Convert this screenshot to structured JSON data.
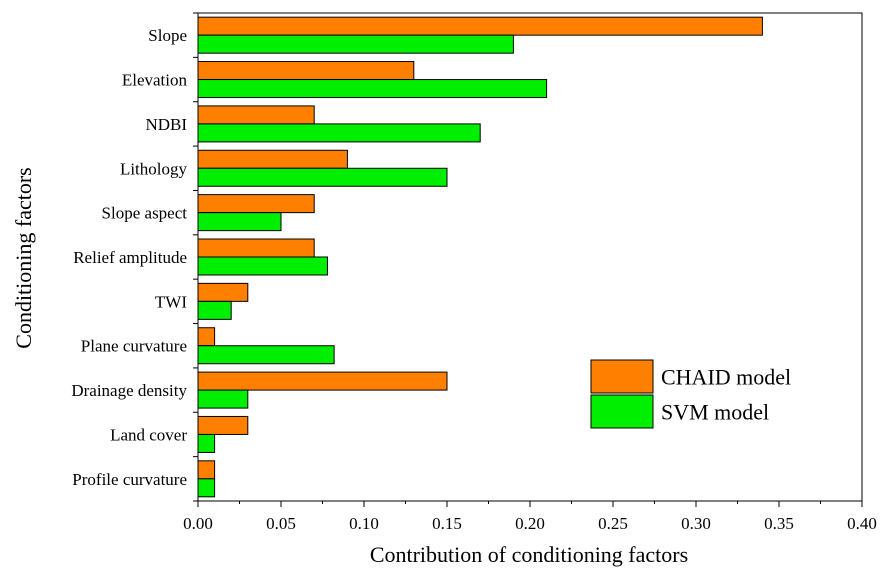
{
  "chart_data": {
    "type": "bar",
    "orientation": "horizontal",
    "categories": [
      "Slope",
      "Elevation",
      "NDBI",
      "Lithology",
      "Slope aspect",
      "Relief amplitude",
      "TWI",
      "Plane curvature",
      "Drainage density",
      "Land cover",
      "Profile curvature"
    ],
    "series": [
      {
        "name": "CHAID model",
        "color": "#ff8000",
        "values": [
          0.34,
          0.13,
          0.07,
          0.09,
          0.07,
          0.07,
          0.03,
          0.01,
          0.15,
          0.03,
          0.01
        ]
      },
      {
        "name": "SVM model",
        "color": "#00ee00",
        "values": [
          0.19,
          0.21,
          0.17,
          0.15,
          0.05,
          0.078,
          0.02,
          0.082,
          0.03,
          0.01,
          0.01
        ]
      }
    ],
    "xlabel": "Contribution of  conditioning factors",
    "ylabel": "Conditioning factors",
    "xlim": [
      0,
      0.4
    ],
    "xticks": [
      "0.00",
      "0.05",
      "0.10",
      "0.15",
      "0.20",
      "0.25",
      "0.30",
      "0.35",
      "0.40"
    ],
    "grid": false,
    "legend_position": "bottom-right"
  }
}
